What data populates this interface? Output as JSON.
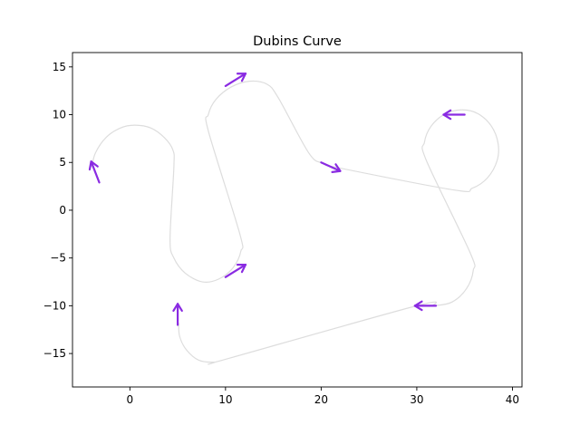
{
  "chart_data": {
    "type": "line",
    "title": "Dubins Curve",
    "xlabel": "",
    "ylabel": "",
    "xlim": [
      -6,
      41
    ],
    "ylim": [
      -18.5,
      16.5
    ],
    "x_ticks": [
      0,
      10,
      20,
      30,
      40
    ],
    "y_ticks": [
      -15,
      -10,
      -5,
      0,
      5,
      10,
      15
    ],
    "x_tick_labels": [
      "0",
      "10",
      "20",
      "30",
      "40"
    ],
    "y_tick_labels": [
      "−15",
      "−10",
      "−5",
      "0",
      "5",
      "10",
      "15"
    ],
    "grid": false,
    "colors": {
      "path": "#dddddd",
      "arrow": "#8a2be2"
    },
    "path": {
      "points": [
        [
          -4.0,
          4.5
        ],
        [
          -3.6,
          6.0
        ],
        [
          -2.5,
          7.6
        ],
        [
          -1.0,
          8.6
        ],
        [
          0.5,
          8.9
        ],
        [
          2.2,
          8.6
        ],
        [
          3.6,
          7.6
        ],
        [
          4.5,
          6.3
        ],
        [
          4.6,
          4.5
        ],
        [
          4.2,
          -3.0
        ],
        [
          4.6,
          -5.0
        ],
        [
          5.8,
          -6.6
        ],
        [
          7.6,
          -7.5
        ],
        [
          9.3,
          -7.2
        ],
        [
          10.8,
          -6.0
        ],
        [
          11.6,
          -4.3
        ],
        [
          11.5,
          -2.5
        ],
        [
          8.2,
          8.3
        ],
        [
          8.2,
          10.0
        ],
        [
          9.0,
          11.6
        ],
        [
          10.6,
          12.9
        ],
        [
          12.5,
          13.5
        ],
        [
          14.3,
          13.2
        ],
        [
          15.5,
          11.8
        ],
        [
          18.7,
          6.0
        ],
        [
          20.2,
          4.9
        ],
        [
          22.0,
          4.4
        ],
        [
          34.0,
          2.1
        ],
        [
          35.8,
          2.3
        ],
        [
          37.4,
          3.4
        ],
        [
          38.4,
          5.2
        ],
        [
          38.5,
          7.0
        ],
        [
          37.8,
          8.8
        ],
        [
          36.4,
          10.1
        ],
        [
          34.8,
          10.5
        ],
        [
          33.0,
          10.1
        ],
        [
          31.5,
          8.8
        ],
        [
          30.8,
          7.1
        ],
        [
          31.0,
          5.2
        ],
        [
          35.6,
          -4.5
        ],
        [
          35.9,
          -6.3
        ],
        [
          35.2,
          -8.2
        ],
        [
          33.7,
          -9.6
        ],
        [
          31.8,
          -10.0
        ],
        [
          30.0,
          -10.0
        ],
        [
          10.0,
          -15.6
        ],
        [
          8.8,
          -15.9
        ],
        [
          7.2,
          -15.7
        ],
        [
          5.9,
          -14.6
        ],
        [
          5.2,
          -13.2
        ],
        [
          5.1,
          -11.8
        ]
      ]
    },
    "arrows": [
      {
        "x": -3.2,
        "y": 2.9,
        "dx": -0.85,
        "dy": 2.2
      },
      {
        "x": 10.0,
        "y": 13.0,
        "dx": 2.1,
        "dy": 1.3
      },
      {
        "x": 20.0,
        "y": 5.0,
        "dx": 2.0,
        "dy": -0.9
      },
      {
        "x": 35.0,
        "y": 10.0,
        "dx": -2.2,
        "dy": 0.0
      },
      {
        "x": 10.0,
        "y": -7.0,
        "dx": 2.1,
        "dy": 1.3
      },
      {
        "x": 32.0,
        "y": -10.0,
        "dx": -2.2,
        "dy": 0.0
      },
      {
        "x": 5.0,
        "y": -12.0,
        "dx": 0.0,
        "dy": 2.2
      }
    ]
  }
}
